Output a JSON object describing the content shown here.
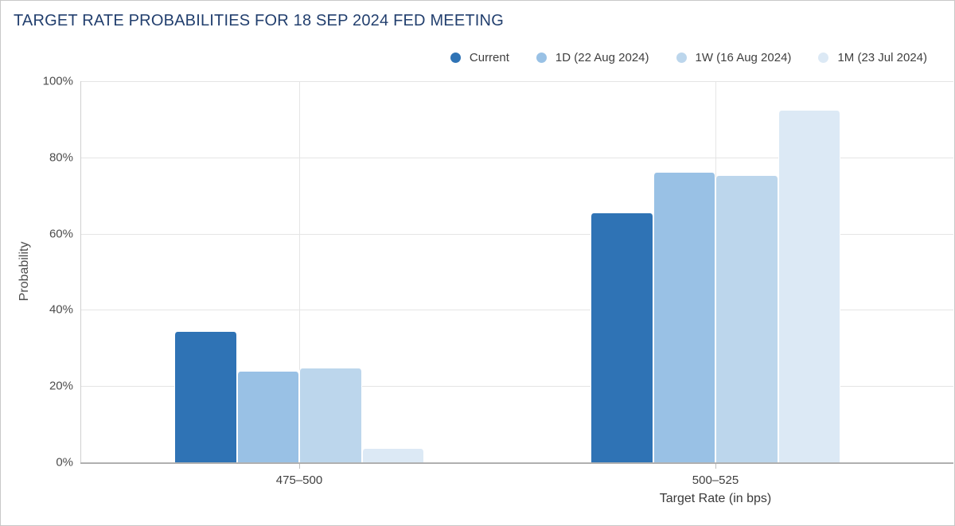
{
  "chart_data": {
    "type": "bar",
    "title": "TARGET RATE PROBABILITIES FOR 18 SEP 2024 FED MEETING",
    "categories": [
      "475–500",
      "500–525"
    ],
    "series": [
      {
        "name": "Current",
        "color": "#2f73b5",
        "values": [
          34.2,
          65.3
        ]
      },
      {
        "name": "1D (22 Aug 2024)",
        "color": "#99c1e5",
        "values": [
          23.9,
          75.9
        ]
      },
      {
        "name": "1W (16 Aug 2024)",
        "color": "#bcd6ec",
        "values": [
          24.7,
          75.1
        ]
      },
      {
        "name": "1M (23 Jul 2024)",
        "color": "#dce9f5",
        "values": [
          3.6,
          92.2
        ]
      }
    ],
    "xlabel": "Target Rate (in bps)",
    "ylabel": "Probability",
    "ylim": [
      0,
      100
    ],
    "yticks": [
      0,
      20,
      40,
      60,
      80,
      100
    ],
    "ytick_suffix": "%",
    "grid": true,
    "legend_position": "top-right"
  },
  "colors": {
    "title_text": "#223f6e",
    "legend_text": "#404040",
    "axis_text": "#4d4d4d",
    "gridline": "#e5e5e5",
    "baseline": "#b0b0b0",
    "card_border": "#c8c8c8"
  }
}
